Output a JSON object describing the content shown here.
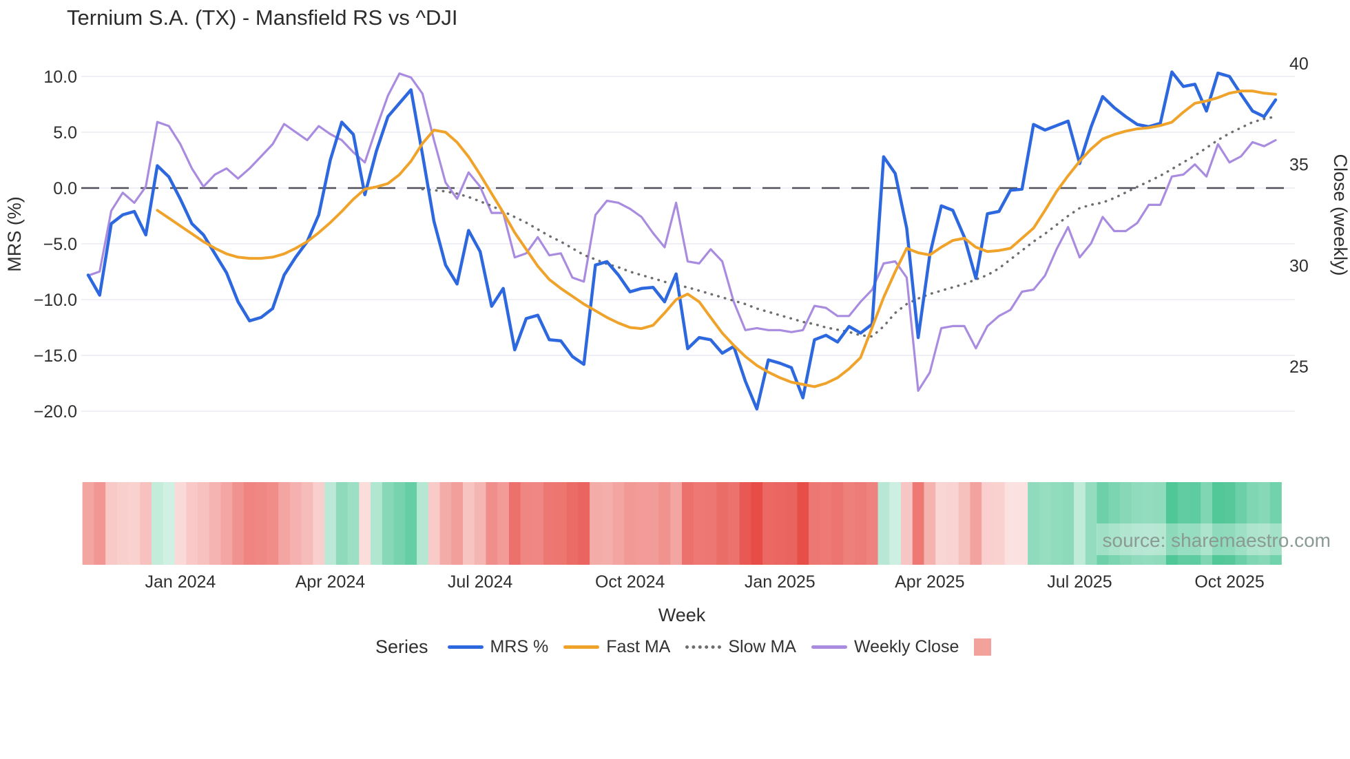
{
  "header": {
    "title": "Ternium S.A. (TX) - Mansfield RS vs ^DJI"
  },
  "watermark": {
    "text": "source: sharemaestro.com"
  },
  "legend": {
    "title": "Series",
    "items": [
      {
        "label": "MRS %",
        "color": "#2d68de",
        "style": "solid"
      },
      {
        "label": "Fast MA",
        "color": "#f0a32a",
        "style": "solid"
      },
      {
        "label": "Slow MA",
        "color": "#6e6e6e",
        "style": "dotted"
      },
      {
        "label": "Weekly Close",
        "color": "#a98ce0",
        "style": "solid"
      }
    ],
    "extra_swatch_color": "#f2a19b"
  },
  "chart_data": {
    "type": "line",
    "title": "Ternium S.A. (TX) - Mansfield RS vs ^DJI",
    "xlabel": "Week",
    "ylabel_left": "MRS (%)",
    "ylabel_right": "Close (weekly)",
    "n_weeks": 104,
    "x_ticks": [
      {
        "week": 8,
        "label": "Jan 2024"
      },
      {
        "week": 21,
        "label": "Apr 2024"
      },
      {
        "week": 34,
        "label": "Jul 2024"
      },
      {
        "week": 47,
        "label": "Oct 2024"
      },
      {
        "week": 60,
        "label": "Jan 2025"
      },
      {
        "week": 73,
        "label": "Apr 2025"
      },
      {
        "week": 86,
        "label": "Jul 2025"
      },
      {
        "week": 99,
        "label": "Oct 2025"
      }
    ],
    "left_axis": {
      "ticks": [
        10,
        5,
        0,
        -5,
        -10,
        -15,
        -20
      ],
      "tick_labels": [
        "10.0",
        "5.0",
        "0.0",
        "−5.0",
        "−10.0",
        "−15.0",
        "−20.0"
      ],
      "range": [
        -22.5,
        11.2
      ]
    },
    "right_axis": {
      "ticks": [
        40,
        35,
        30,
        25
      ],
      "tick_labels": [
        "40",
        "35",
        "30",
        "25"
      ],
      "range": [
        23.5,
        40.5
      ]
    },
    "zero_line": 0,
    "grid": "horizontal-left-ticks",
    "legend_position": "bottom",
    "series": [
      {
        "name": "MRS %",
        "axis": "left",
        "color": "#2d68de",
        "style": "solid",
        "width": 4.5,
        "start_week": 0,
        "values": [
          -7.8,
          -9.6,
          -3.2,
          -2.4,
          -2.1,
          -4.2,
          2.0,
          1.0,
          -1.0,
          -3.2,
          -4.2,
          -5.9,
          -7.6,
          -10.2,
          -11.9,
          -11.6,
          -10.8,
          -7.8,
          -6.2,
          -4.8,
          -2.4,
          2.5,
          5.9,
          4.8,
          -0.6,
          3.3,
          6.4,
          7.6,
          8.8,
          3.0,
          -3.0,
          -6.9,
          -8.6,
          -3.8,
          -5.7,
          -10.6,
          -9.0,
          -14.5,
          -11.7,
          -11.4,
          -13.6,
          -13.7,
          -15.1,
          -15.8,
          -6.9,
          -6.6,
          -7.8,
          -9.3,
          -9.0,
          -8.9,
          -10.2,
          -7.7,
          -14.4,
          -13.4,
          -13.6,
          -14.8,
          -14.2,
          -17.3,
          -19.8,
          -15.4,
          -15.7,
          -16.1,
          -18.8,
          -13.6,
          -13.2,
          -13.8,
          -12.4,
          -13.0,
          -12.2,
          2.8,
          1.3,
          -3.6,
          -13.4,
          -6.0,
          -1.6,
          -2.0,
          -4.4,
          -8.1,
          -2.3,
          -2.1,
          -0.2,
          -0.1,
          5.7,
          5.2,
          5.6,
          6.0,
          2.2,
          5.5,
          8.2,
          7.2,
          6.4,
          5.7,
          5.5,
          5.8,
          10.4,
          9.1,
          9.3,
          6.9,
          10.3,
          10.0,
          8.4,
          6.9,
          6.4,
          7.9
        ]
      },
      {
        "name": "Fast MA",
        "axis": "left",
        "color": "#f0a32a",
        "style": "solid",
        "width": 4,
        "start_week": 6,
        "values": [
          -2.0,
          -2.7,
          -3.4,
          -4.1,
          -4.8,
          -5.4,
          -5.9,
          -6.2,
          -6.3,
          -6.3,
          -6.2,
          -5.9,
          -5.4,
          -4.8,
          -4.0,
          -3.1,
          -2.1,
          -1.0,
          -0.1,
          0.1,
          0.4,
          1.2,
          2.4,
          4.0,
          5.2,
          5.0,
          4.1,
          2.8,
          1.2,
          -0.5,
          -2.2,
          -4.0,
          -5.5,
          -7.0,
          -8.2,
          -9.0,
          -9.7,
          -10.4,
          -11.0,
          -11.6,
          -12.1,
          -12.5,
          -12.6,
          -12.3,
          -11.2,
          -10.0,
          -9.5,
          -10.2,
          -11.6,
          -13.0,
          -14.1,
          -15.1,
          -15.9,
          -16.5,
          -17.0,
          -17.4,
          -17.6,
          -17.8,
          -17.5,
          -17.0,
          -16.2,
          -15.2,
          -12.5,
          -9.8,
          -7.5,
          -5.4,
          -5.8,
          -6.0,
          -5.3,
          -4.7,
          -4.5,
          -5.3,
          -5.7,
          -5.6,
          -5.4,
          -4.5,
          -3.6,
          -2.0,
          -0.3,
          1.1,
          2.4,
          3.5,
          4.4,
          4.8,
          5.1,
          5.3,
          5.4,
          5.6,
          5.9,
          6.8,
          7.6,
          7.8,
          8.1,
          8.5,
          8.7,
          8.7,
          8.5,
          8.4
        ]
      },
      {
        "name": "Slow MA",
        "axis": "left",
        "color": "#6e6e6e",
        "style": "dotted",
        "width": 3.5,
        "start_week": 29,
        "values": [
          -0.1,
          -0.2,
          -0.3,
          -0.5,
          -0.8,
          -1.2,
          -1.6,
          -2.1,
          -2.6,
          -3.1,
          -3.7,
          -4.3,
          -4.8,
          -5.4,
          -6.0,
          -6.4,
          -6.8,
          -7.1,
          -7.5,
          -7.8,
          -8.1,
          -8.4,
          -8.7,
          -8.9,
          -9.2,
          -9.5,
          -9.8,
          -10.1,
          -10.4,
          -10.8,
          -11.1,
          -11.4,
          -11.7,
          -12.0,
          -12.2,
          -12.5,
          -12.7,
          -12.9,
          -13.2,
          -13.3,
          -12.4,
          -11.2,
          -10.4,
          -9.9,
          -9.5,
          -9.2,
          -8.9,
          -8.6,
          -8.2,
          -7.8,
          -7.2,
          -6.4,
          -5.6,
          -4.8,
          -4.1,
          -3.3,
          -2.5,
          -1.8,
          -1.5,
          -1.3,
          -0.9,
          -0.4,
          0.1,
          0.6,
          1.1,
          1.7,
          2.3,
          2.9,
          3.6,
          4.3,
          4.9,
          5.4,
          5.9,
          6.2,
          6.4
        ]
      },
      {
        "name": "Weekly Close",
        "axis": "right",
        "color": "#a98ce0",
        "style": "solid",
        "width": 3.2,
        "start_week": 0,
        "values": [
          29.5,
          29.7,
          32.7,
          33.6,
          33.1,
          33.9,
          37.1,
          36.9,
          36.0,
          34.8,
          33.9,
          34.5,
          34.8,
          34.3,
          34.8,
          35.4,
          36.0,
          37.0,
          36.6,
          36.2,
          36.9,
          36.5,
          36.2,
          35.6,
          35.1,
          36.8,
          38.4,
          39.5,
          39.3,
          38.5,
          36.2,
          34.1,
          33.3,
          34.6,
          33.9,
          32.6,
          32.6,
          30.4,
          30.6,
          31.4,
          30.5,
          30.6,
          29.4,
          29.2,
          32.5,
          33.2,
          33.1,
          32.8,
          32.4,
          31.6,
          30.9,
          33.1,
          30.2,
          30.1,
          30.8,
          30.2,
          28.2,
          26.8,
          26.9,
          26.8,
          26.8,
          26.7,
          26.8,
          28.0,
          27.9,
          27.5,
          27.5,
          28.2,
          28.8,
          30.1,
          30.2,
          29.4,
          23.8,
          24.7,
          26.9,
          27.0,
          27.0,
          25.9,
          27.0,
          27.5,
          27.8,
          28.7,
          28.8,
          29.5,
          30.8,
          31.9,
          30.4,
          31.1,
          32.4,
          31.7,
          31.7,
          32.1,
          33.0,
          33.0,
          34.4,
          34.5,
          35.0,
          34.4,
          36.0,
          35.1,
          35.4,
          36.1,
          35.9,
          36.2
        ]
      }
    ],
    "heatmap_strip": {
      "encodes": "MRS % value per week (red = negative, green = positive)",
      "neg_color": "#e74c46",
      "pos_color": "#48c492",
      "neg_full_scale": 19,
      "pos_full_scale": 11
    },
    "colors": {
      "grid": "#e9ebf2",
      "zero_line": "#50505a",
      "tick_text": "#2f2f2f",
      "title_text": "#2c2c2c",
      "watermark_text": "#8a9a94"
    }
  }
}
